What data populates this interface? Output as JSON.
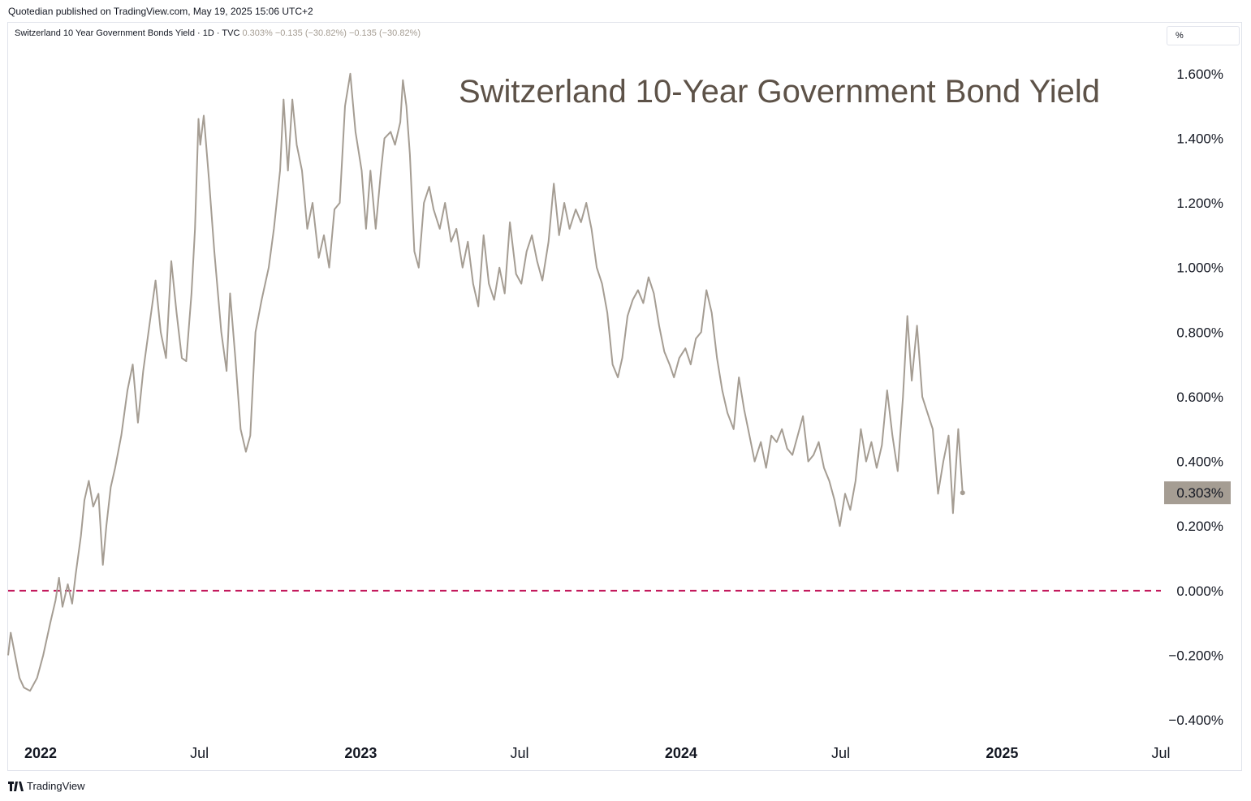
{
  "header": {
    "published": "Quotedian published on TradingView.com, May 19, 2025 15:06 UTC+2"
  },
  "legend": {
    "symbol": "Switzerland 10 Year Government Bonds Yield · 1D · TVC",
    "values": "0.303%  −0.135 (−30.82%)  −0.135 (−30.82%)"
  },
  "unit_button": {
    "label": "%"
  },
  "footer": {
    "brand": "TradingView",
    "logo": "tradingview-logo-icon"
  },
  "colors": {
    "series": "#a59d93",
    "zero_line": "#c2185b",
    "title": "#5d5248",
    "badge": "#a59d93"
  },
  "chart_data": {
    "type": "line",
    "title": "Switzerland 10-Year Government Bond Yield",
    "x_ticks": [
      "2022",
      "Jul",
      "2023",
      "Jul",
      "2024",
      "Jul",
      "2025",
      "Jul"
    ],
    "x_tick_dates": [
      "2022-01-01",
      "2022-07-01",
      "2023-01-01",
      "2023-07-01",
      "2024-01-01",
      "2024-07-01",
      "2025-01-01",
      "2025-07-01"
    ],
    "x_range": [
      "2021-11-25",
      "2025-07-01"
    ],
    "y_ticks": [
      1.6,
      1.4,
      1.2,
      1.0,
      0.8,
      0.6,
      0.4,
      0.2,
      0.0,
      -0.2,
      -0.4
    ],
    "y_tick_labels": [
      "1.600%",
      "1.400%",
      "1.200%",
      "1.000%",
      "0.800%",
      "0.600%",
      "0.400%",
      "0.200%",
      "0.000%",
      "−0.200%",
      "−0.400%"
    ],
    "ylim": [
      -0.45,
      1.72
    ],
    "reference_line": {
      "value": 0.0,
      "style": "dashed"
    },
    "last_value_label": "0.303%",
    "last_value": 0.303,
    "grid": false,
    "series": [
      {
        "points": [
          [
            "2021-11-25",
            -0.2
          ],
          [
            "2021-11-28",
            -0.13
          ],
          [
            "2021-12-03",
            -0.2
          ],
          [
            "2021-12-08",
            -0.27
          ],
          [
            "2021-12-13",
            -0.3
          ],
          [
            "2021-12-20",
            -0.31
          ],
          [
            "2021-12-28",
            -0.27
          ],
          [
            "2022-01-04",
            -0.2
          ],
          [
            "2022-01-12",
            -0.1
          ],
          [
            "2022-01-18",
            -0.03
          ],
          [
            "2022-01-22",
            0.04
          ],
          [
            "2022-01-26",
            -0.05
          ],
          [
            "2022-02-01",
            0.02
          ],
          [
            "2022-02-06",
            -0.04
          ],
          [
            "2022-02-10",
            0.05
          ],
          [
            "2022-02-16",
            0.17
          ],
          [
            "2022-02-20",
            0.28
          ],
          [
            "2022-02-25",
            0.34
          ],
          [
            "2022-03-02",
            0.26
          ],
          [
            "2022-03-08",
            0.3
          ],
          [
            "2022-03-13",
            0.08
          ],
          [
            "2022-03-17",
            0.2
          ],
          [
            "2022-03-22",
            0.32
          ],
          [
            "2022-03-27",
            0.38
          ],
          [
            "2022-04-03",
            0.48
          ],
          [
            "2022-04-10",
            0.62
          ],
          [
            "2022-04-16",
            0.7
          ],
          [
            "2022-04-22",
            0.52
          ],
          [
            "2022-04-28",
            0.68
          ],
          [
            "2022-05-05",
            0.82
          ],
          [
            "2022-05-12",
            0.96
          ],
          [
            "2022-05-18",
            0.8
          ],
          [
            "2022-05-24",
            0.72
          ],
          [
            "2022-05-30",
            1.02
          ],
          [
            "2022-06-05",
            0.86
          ],
          [
            "2022-06-11",
            0.72
          ],
          [
            "2022-06-16",
            0.71
          ],
          [
            "2022-06-22",
            0.92
          ],
          [
            "2022-06-26",
            1.12
          ],
          [
            "2022-06-30",
            1.46
          ],
          [
            "2022-07-02",
            1.38
          ],
          [
            "2022-07-06",
            1.47
          ],
          [
            "2022-07-12",
            1.27
          ],
          [
            "2022-07-18",
            1.05
          ],
          [
            "2022-07-26",
            0.8
          ],
          [
            "2022-08-01",
            0.68
          ],
          [
            "2022-08-05",
            0.92
          ],
          [
            "2022-08-11",
            0.72
          ],
          [
            "2022-08-17",
            0.5
          ],
          [
            "2022-08-23",
            0.43
          ],
          [
            "2022-08-28",
            0.48
          ],
          [
            "2022-09-03",
            0.8
          ],
          [
            "2022-09-10",
            0.9
          ],
          [
            "2022-09-18",
            1.0
          ],
          [
            "2022-09-24",
            1.12
          ],
          [
            "2022-10-01",
            1.3
          ],
          [
            "2022-10-05",
            1.52
          ],
          [
            "2022-10-10",
            1.3
          ],
          [
            "2022-10-15",
            1.52
          ],
          [
            "2022-10-20",
            1.38
          ],
          [
            "2022-10-26",
            1.3
          ],
          [
            "2022-11-01",
            1.12
          ],
          [
            "2022-11-07",
            1.2
          ],
          [
            "2022-11-14",
            1.03
          ],
          [
            "2022-11-20",
            1.1
          ],
          [
            "2022-11-26",
            1.0
          ],
          [
            "2022-12-02",
            1.18
          ],
          [
            "2022-12-08",
            1.2
          ],
          [
            "2022-12-14",
            1.5
          ],
          [
            "2022-12-20",
            1.6
          ],
          [
            "2022-12-26",
            1.42
          ],
          [
            "2023-01-02",
            1.3
          ],
          [
            "2023-01-07",
            1.12
          ],
          [
            "2023-01-12",
            1.3
          ],
          [
            "2023-01-18",
            1.12
          ],
          [
            "2023-01-24",
            1.3
          ],
          [
            "2023-01-28",
            1.4
          ],
          [
            "2023-02-04",
            1.42
          ],
          [
            "2023-02-09",
            1.38
          ],
          [
            "2023-02-15",
            1.45
          ],
          [
            "2023-02-18",
            1.58
          ],
          [
            "2023-02-22",
            1.5
          ],
          [
            "2023-02-26",
            1.35
          ],
          [
            "2023-03-03",
            1.05
          ],
          [
            "2023-03-08",
            1.0
          ],
          [
            "2023-03-14",
            1.2
          ],
          [
            "2023-03-20",
            1.25
          ],
          [
            "2023-03-25",
            1.18
          ],
          [
            "2023-04-01",
            1.12
          ],
          [
            "2023-04-07",
            1.2
          ],
          [
            "2023-04-14",
            1.08
          ],
          [
            "2023-04-20",
            1.12
          ],
          [
            "2023-04-27",
            1.0
          ],
          [
            "2023-05-03",
            1.08
          ],
          [
            "2023-05-09",
            0.95
          ],
          [
            "2023-05-15",
            0.88
          ],
          [
            "2023-05-21",
            1.1
          ],
          [
            "2023-05-27",
            0.95
          ],
          [
            "2023-06-02",
            0.9
          ],
          [
            "2023-06-08",
            1.0
          ],
          [
            "2023-06-14",
            0.92
          ],
          [
            "2023-06-20",
            1.14
          ],
          [
            "2023-06-27",
            0.98
          ],
          [
            "2023-07-03",
            0.95
          ],
          [
            "2023-07-09",
            1.05
          ],
          [
            "2023-07-15",
            1.1
          ],
          [
            "2023-07-21",
            1.02
          ],
          [
            "2023-07-27",
            0.96
          ],
          [
            "2023-08-03",
            1.08
          ],
          [
            "2023-08-09",
            1.26
          ],
          [
            "2023-08-15",
            1.1
          ],
          [
            "2023-08-21",
            1.2
          ],
          [
            "2023-08-27",
            1.12
          ],
          [
            "2023-09-03",
            1.18
          ],
          [
            "2023-09-09",
            1.14
          ],
          [
            "2023-09-15",
            1.2
          ],
          [
            "2023-09-21",
            1.12
          ],
          [
            "2023-09-27",
            1.0
          ],
          [
            "2023-10-03",
            0.95
          ],
          [
            "2023-10-09",
            0.86
          ],
          [
            "2023-10-15",
            0.7
          ],
          [
            "2023-10-21",
            0.66
          ],
          [
            "2023-10-26",
            0.72
          ],
          [
            "2023-11-01",
            0.85
          ],
          [
            "2023-11-07",
            0.9
          ],
          [
            "2023-11-13",
            0.93
          ],
          [
            "2023-11-19",
            0.89
          ],
          [
            "2023-11-25",
            0.97
          ],
          [
            "2023-12-01",
            0.92
          ],
          [
            "2023-12-07",
            0.82
          ],
          [
            "2023-12-13",
            0.74
          ],
          [
            "2023-12-19",
            0.7
          ],
          [
            "2023-12-24",
            0.66
          ],
          [
            "2023-12-30",
            0.72
          ],
          [
            "2024-01-06",
            0.75
          ],
          [
            "2024-01-12",
            0.7
          ],
          [
            "2024-01-18",
            0.78
          ],
          [
            "2024-01-24",
            0.8
          ],
          [
            "2024-01-30",
            0.93
          ],
          [
            "2024-02-05",
            0.86
          ],
          [
            "2024-02-11",
            0.72
          ],
          [
            "2024-02-17",
            0.62
          ],
          [
            "2024-02-23",
            0.55
          ],
          [
            "2024-03-01",
            0.5
          ],
          [
            "2024-03-07",
            0.66
          ],
          [
            "2024-03-13",
            0.56
          ],
          [
            "2024-03-19",
            0.48
          ],
          [
            "2024-03-25",
            0.4
          ],
          [
            "2024-04-01",
            0.46
          ],
          [
            "2024-04-07",
            0.38
          ],
          [
            "2024-04-13",
            0.48
          ],
          [
            "2024-04-19",
            0.46
          ],
          [
            "2024-04-25",
            0.5
          ],
          [
            "2024-05-01",
            0.44
          ],
          [
            "2024-05-07",
            0.42
          ],
          [
            "2024-05-13",
            0.48
          ],
          [
            "2024-05-19",
            0.54
          ],
          [
            "2024-05-25",
            0.4
          ],
          [
            "2024-05-31",
            0.42
          ],
          [
            "2024-06-06",
            0.46
          ],
          [
            "2024-06-12",
            0.38
          ],
          [
            "2024-06-18",
            0.34
          ],
          [
            "2024-06-24",
            0.28
          ],
          [
            "2024-06-30",
            0.2
          ],
          [
            "2024-07-06",
            0.3
          ],
          [
            "2024-07-12",
            0.25
          ],
          [
            "2024-07-18",
            0.34
          ],
          [
            "2024-07-24",
            0.5
          ],
          [
            "2024-07-30",
            0.4
          ],
          [
            "2024-08-05",
            0.46
          ],
          [
            "2024-08-11",
            0.38
          ],
          [
            "2024-08-17",
            0.45
          ],
          [
            "2024-08-23",
            0.62
          ],
          [
            "2024-08-29",
            0.48
          ],
          [
            "2024-09-04",
            0.37
          ],
          [
            "2024-09-10",
            0.6
          ],
          [
            "2024-09-15",
            0.85
          ],
          [
            "2024-09-20",
            0.65
          ],
          [
            "2024-09-26",
            0.82
          ],
          [
            "2024-10-02",
            0.6
          ],
          [
            "2024-10-08",
            0.55
          ],
          [
            "2024-10-14",
            0.5
          ],
          [
            "2024-10-20",
            0.3
          ],
          [
            "2024-10-26",
            0.4
          ],
          [
            "2024-11-01",
            0.48
          ],
          [
            "2024-11-06",
            0.24
          ],
          [
            "2024-11-12",
            0.5
          ],
          [
            "2024-11-17",
            0.3
          ]
        ]
      }
    ]
  }
}
